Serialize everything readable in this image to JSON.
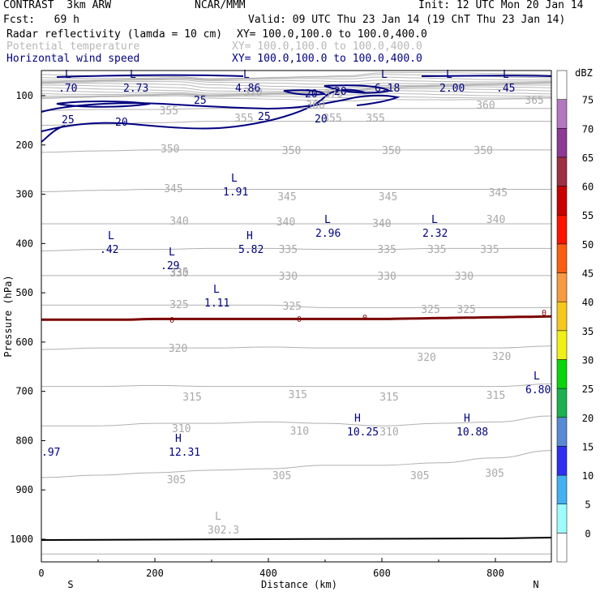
{
  "header": {
    "model": "CONTRAST  3km ARW",
    "org": "NCAR/MMM",
    "init": "Init: 12 UTC Mon 20 Jan 14",
    "fcst": "Fcst:   69 h",
    "valid": "Valid: 09 UTC Thu 23 Jan 14 (19 ChT Thu 23 Jan 14)",
    "field1_name": "Radar reflectivity (lamda = 10 cm)",
    "field1_xy": "XY= 100.0,100.0 to 100.0,400.0",
    "field2_name": "Potential temperature",
    "field2_xy": "XY= 100.0,100.0 to 100.0,400.0",
    "field3_name": "Horizontal wind speed",
    "field3_xy": "XY= 100.0,100.0 to 100.0,400.0"
  },
  "colors": {
    "theta": "#b0b0b0",
    "wind": "#000080",
    "zero_line": "#7a0000",
    "terrain": "#000000"
  },
  "chart_data": {
    "type": "cross-section",
    "xlabel": "Distance (km)",
    "ylabel": "Pressure (hPa)",
    "x_ticks": [
      "0",
      "200",
      "400",
      "600",
      "800"
    ],
    "x_tick_values": [
      0,
      200,
      400,
      600,
      800
    ],
    "xlim": [
      0,
      900
    ],
    "y_ticks": [
      "100",
      "200",
      "300",
      "400",
      "500",
      "600",
      "700",
      "800",
      "900",
      "1000"
    ],
    "y_tick_values": [
      100,
      200,
      300,
      400,
      500,
      600,
      700,
      800,
      900,
      1000
    ],
    "ylim": [
      1045,
      50
    ],
    "x_end_labels": {
      "left": "S",
      "right": "N"
    },
    "potential_temperature_contours": [
      {
        "value": 300,
        "label": "",
        "points": [
          [
            0,
            1030
          ],
          [
            900,
            1030
          ]
        ]
      },
      {
        "value": 305,
        "label": "305",
        "points": [
          [
            0,
            875
          ],
          [
            100,
            870
          ],
          [
            200,
            865
          ],
          [
            300,
            860
          ],
          [
            400,
            857
          ],
          [
            500,
            850
          ],
          [
            600,
            850
          ],
          [
            700,
            845
          ],
          [
            800,
            835
          ],
          [
            900,
            820
          ]
        ]
      },
      {
        "value": 310,
        "label": "310",
        "points": [
          [
            0,
            770
          ],
          [
            100,
            770
          ],
          [
            200,
            765
          ],
          [
            300,
            765
          ],
          [
            400,
            762
          ],
          [
            500,
            765
          ],
          [
            600,
            770
          ],
          [
            700,
            765
          ],
          [
            800,
            762
          ],
          [
            900,
            750
          ]
        ]
      },
      {
        "value": 315,
        "label": "315",
        "points": [
          [
            0,
            690
          ],
          [
            100,
            690
          ],
          [
            200,
            688
          ],
          [
            300,
            690
          ],
          [
            400,
            690
          ],
          [
            500,
            690
          ],
          [
            600,
            690
          ],
          [
            700,
            690
          ],
          [
            800,
            690
          ],
          [
            900,
            685
          ]
        ]
      },
      {
        "value": 320,
        "label": "320",
        "points": [
          [
            0,
            615
          ],
          [
            100,
            612
          ],
          [
            200,
            612
          ],
          [
            300,
            612
          ],
          [
            400,
            610
          ],
          [
            500,
            612
          ],
          [
            600,
            612
          ],
          [
            700,
            612
          ],
          [
            800,
            612
          ],
          [
            900,
            608
          ]
        ]
      },
      {
        "value": 325,
        "label": "325",
        "points": [
          [
            0,
            525
          ],
          [
            100,
            525
          ],
          [
            200,
            525
          ],
          [
            300,
            525
          ],
          [
            400,
            525
          ],
          [
            500,
            530
          ],
          [
            600,
            530
          ],
          [
            700,
            530
          ],
          [
            800,
            530
          ],
          [
            900,
            530
          ]
        ]
      },
      {
        "value": 330,
        "label": "330",
        "points": [
          [
            0,
            465
          ],
          [
            100,
            465
          ],
          [
            200,
            465
          ],
          [
            300,
            465
          ],
          [
            400,
            465
          ],
          [
            500,
            465
          ],
          [
            600,
            465
          ],
          [
            700,
            465
          ],
          [
            800,
            465
          ],
          [
            900,
            465
          ]
        ]
      },
      {
        "value": 335,
        "label": "335",
        "points": [
          [
            0,
            415
          ],
          [
            100,
            412
          ],
          [
            200,
            412
          ],
          [
            300,
            410
          ],
          [
            400,
            410
          ],
          [
            500,
            412
          ],
          [
            600,
            412
          ],
          [
            700,
            410
          ],
          [
            800,
            410
          ],
          [
            900,
            410
          ]
        ]
      },
      {
        "value": 340,
        "label": "340",
        "points": [
          [
            0,
            360
          ],
          [
            100,
            360
          ],
          [
            200,
            360
          ],
          [
            300,
            360
          ],
          [
            400,
            360
          ],
          [
            500,
            360
          ],
          [
            600,
            360
          ],
          [
            700,
            360
          ],
          [
            800,
            360
          ],
          [
            900,
            360
          ]
        ]
      },
      {
        "value": 345,
        "label": "345",
        "points": [
          [
            0,
            295
          ],
          [
            100,
            292
          ],
          [
            200,
            290
          ],
          [
            300,
            290
          ],
          [
            400,
            290
          ],
          [
            500,
            290
          ],
          [
            600,
            290
          ],
          [
            700,
            290
          ],
          [
            800,
            290
          ],
          [
            900,
            290
          ]
        ]
      },
      {
        "value": 350,
        "label": "350",
        "points": [
          [
            0,
            215
          ],
          [
            100,
            212
          ],
          [
            200,
            210
          ],
          [
            300,
            210
          ],
          [
            400,
            210
          ],
          [
            500,
            210
          ],
          [
            600,
            210
          ],
          [
            700,
            210
          ],
          [
            800,
            210
          ],
          [
            900,
            210
          ]
        ]
      },
      {
        "value": 355,
        "label": "355",
        "points": [
          [
            0,
            160
          ],
          [
            100,
            158
          ],
          [
            200,
            155
          ],
          [
            300,
            152
          ],
          [
            400,
            152
          ],
          [
            500,
            152
          ],
          [
            600,
            152
          ],
          [
            700,
            152
          ],
          [
            800,
            152
          ],
          [
            900,
            152
          ]
        ]
      },
      {
        "value": 360,
        "label": "360",
        "points": [
          [
            0,
            130
          ],
          [
            100,
            128
          ],
          [
            200,
            128
          ],
          [
            300,
            126
          ],
          [
            400,
            126
          ],
          [
            500,
            126
          ],
          [
            600,
            126
          ],
          [
            700,
            126
          ],
          [
            800,
            126
          ],
          [
            900,
            126
          ]
        ]
      }
    ],
    "wind_speed_contours": [
      {
        "value": 20,
        "label": "20"
      },
      {
        "value": 25,
        "label": "25"
      }
    ],
    "freezing_level": {
      "label": "0"
    },
    "extrema": [
      {
        "type": "L",
        "value": ".70"
      },
      {
        "type": "L",
        "value": "2.73"
      },
      {
        "type": "L",
        "value": "4.86"
      },
      {
        "type": "L",
        "value": "6.18"
      },
      {
        "type": "L",
        "value": "2.00"
      },
      {
        "type": "L",
        "value": ".45"
      },
      {
        "type": "L",
        "value": "1.91"
      },
      {
        "type": "L",
        "value": "2.96"
      },
      {
        "type": "L",
        "value": "2.32"
      },
      {
        "type": "L",
        "value": ".42"
      },
      {
        "type": "H",
        "value": "5.82"
      },
      {
        "type": "L",
        "value": ".29"
      },
      {
        "type": "L",
        "value": "1.11"
      },
      {
        "type": "L",
        "value": "6.80"
      },
      {
        "type": "H",
        "value": "10.25"
      },
      {
        "type": "H",
        "value": "10.88"
      },
      {
        "type": "H",
        "value": "12.31"
      },
      {
        "type": "",
        "value": ".97"
      },
      {
        "type": "L",
        "value": "302.3"
      }
    ],
    "colorbar": {
      "unit": "dBZ",
      "levels": [
        "0",
        "5",
        "10",
        "15",
        "20",
        "25",
        "30",
        "35",
        "40",
        "45",
        "50",
        "55",
        "60",
        "65",
        "70",
        "75"
      ],
      "colors": [
        "#ffffff",
        "#9ffcfc",
        "#43b0f0",
        "#2f2ff2",
        "#5a8ad4",
        "#1cb050",
        "#0ad40a",
        "#f0f018",
        "#f6c81e",
        "#f79a42",
        "#fb5e13",
        "#fc1400",
        "#c80000",
        "#9e3043",
        "#8c3a93",
        "#b478c0",
        "#ffffff"
      ]
    }
  }
}
